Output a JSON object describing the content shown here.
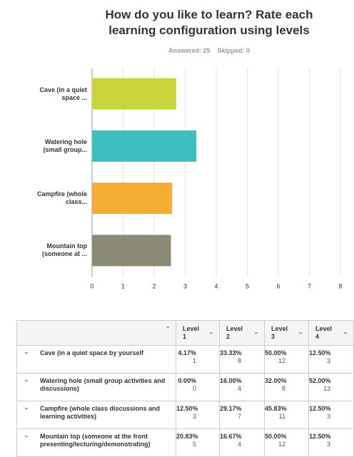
{
  "chart_data": {
    "type": "bar",
    "orientation": "horizontal",
    "title": "How do you like to learn? Rate each learning configuration using levels",
    "answered": "Answered: 25",
    "skipped": "Skipped: 0",
    "categories": [
      "Cave (in a quiet space ...",
      "Watering hole (small group...",
      "Campfire (whole class...",
      "Mountain top (someone at ..."
    ],
    "values": [
      2.71,
      3.36,
      2.58,
      2.54
    ],
    "colors": [
      "#c9d43a",
      "#3dbfbf",
      "#f5ac34",
      "#8b8a77"
    ],
    "xlim": [
      0,
      8
    ],
    "xticks": [
      0,
      1,
      2,
      3,
      4,
      5,
      6,
      7,
      8
    ],
    "grid": true
  },
  "table": {
    "headers": [
      "Level 1",
      "Level 2",
      "Level 3",
      "Level 4"
    ],
    "rows": [
      {
        "label": "Cave (in a quiet space by yourself",
        "cells": [
          {
            "percent": "4.17%",
            "count": 1
          },
          {
            "percent": "33.33%",
            "count": 8
          },
          {
            "percent": "50.00%",
            "count": 12
          },
          {
            "percent": "12.50%",
            "count": 3
          }
        ]
      },
      {
        "label": "Watering hole (small group activities and discussions)",
        "cells": [
          {
            "percent": "0.00%",
            "count": 0
          },
          {
            "percent": "16.00%",
            "count": 4
          },
          {
            "percent": "32.00%",
            "count": 8
          },
          {
            "percent": "52.00%",
            "count": 13
          }
        ]
      },
      {
        "label": "Campfire (whole class discussions and learning activities)",
        "cells": [
          {
            "percent": "12.50%",
            "count": 3
          },
          {
            "percent": "29.17%",
            "count": 7
          },
          {
            "percent": "45.83%",
            "count": 11
          },
          {
            "percent": "12.50%",
            "count": 3
          }
        ]
      },
      {
        "label": "Mountain top (someone at the front presenting/lecturing/demonstrating)",
        "cells": [
          {
            "percent": "20.83%",
            "count": 5
          },
          {
            "percent": "16.67%",
            "count": 4
          },
          {
            "percent": "50.00%",
            "count": 12
          },
          {
            "percent": "12.50%",
            "count": 3
          }
        ]
      }
    ]
  }
}
